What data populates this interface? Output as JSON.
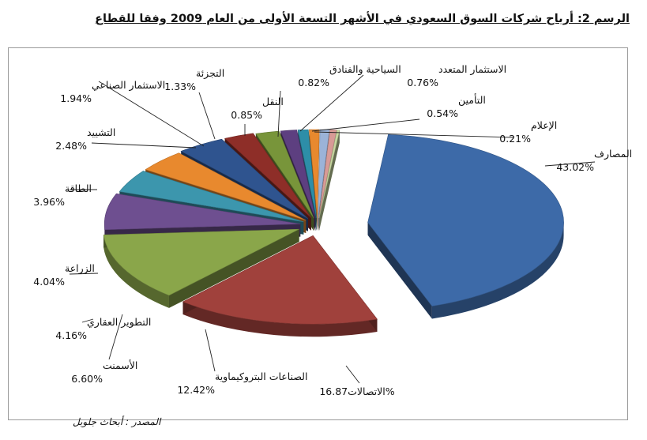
{
  "title": "الرسم 2: أرباح شركات السوق السعودي في الأشهر التسعة الأولى من العام 2009 وفقا للقطاع",
  "source": "المصدر : أبحاث جلوبل",
  "chart_data": {
    "type": "pie",
    "title": "الرسم 2: أرباح شركات السوق السعودي في الأشهر التسعة الأولى من العام 2009 وفقا للقطاع",
    "slices": [
      {
        "label": "المصارف",
        "value": 43.02,
        "value_text": "43.02%",
        "color": "#3d6aa8"
      },
      {
        "label": "الاتصالات",
        "value": 16.87,
        "value_text": "16.87%",
        "color": "#a0413c"
      },
      {
        "label": "الصناعات البتروكيماوية",
        "value": 12.42,
        "value_text": "12.42%",
        "color": "#8aa64a"
      },
      {
        "label": "الأسمنت",
        "value": 6.6,
        "value_text": "6.60%",
        "color": "#6e4f90"
      },
      {
        "label": "التطوير العقاري",
        "value": 4.16,
        "value_text": "4.16%",
        "color": "#3c96ad"
      },
      {
        "label": "الزراعة",
        "value": 4.04,
        "value_text": "4.04%",
        "color": "#e8892e"
      },
      {
        "label": "الطاقة",
        "value": 3.96,
        "value_text": "3.96%",
        "color": "#2f548f"
      },
      {
        "label": "التشييد",
        "value": 2.48,
        "value_text": "2.48%",
        "color": "#8e2e28"
      },
      {
        "label": "الاستثمار الصناعي",
        "value": 1.94,
        "value_text": "1.94%",
        "color": "#78953a"
      },
      {
        "label": "التجزئة",
        "value": 1.33,
        "value_text": "1.33%",
        "color": "#5d3f80"
      },
      {
        "label": "النقل",
        "value": 0.85,
        "value_text": "0.85%",
        "color": "#2d8ea8"
      },
      {
        "label": "السياحية والفنادق",
        "value": 0.82,
        "value_text": "0.82%",
        "color": "#e8892e"
      },
      {
        "label": "الاستثمار المتعدد",
        "value": 0.76,
        "value_text": "0.76%",
        "color": "#9bb3d8"
      },
      {
        "label": "التأمين",
        "value": 0.54,
        "value_text": "0.54%",
        "color": "#d89a96"
      },
      {
        "label": "الإعلام",
        "value": 0.21,
        "value_text": "0.21%",
        "color": "#c8d8a0"
      }
    ]
  }
}
